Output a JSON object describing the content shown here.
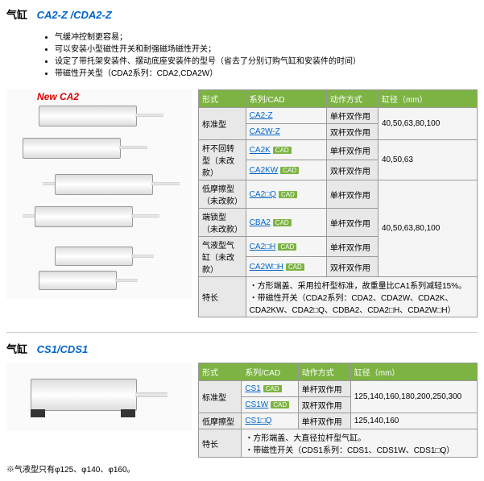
{
  "ca2": {
    "section_label": "气缸",
    "model": "CA2-Z /CDA2-Z",
    "features": [
      "气缓冲控制更容易；",
      "可以安装小型磁性开关和耐强磁场磁性开关；",
      "设定了带托架安装件、摆动底座安装件的型号（省去了分别订购气缸和安装件的时间）",
      "带磁性开关型（CDA2系列：CDA2,CDA2W）"
    ],
    "new_badge": "New CA2",
    "headers": [
      "形式",
      "系列/CAD",
      "动作方式",
      "缸径（mm）"
    ],
    "rows": [
      {
        "form": "标准型",
        "series": [
          {
            "t": "CA2-Z",
            "cad": 0
          },
          {
            "t": "CA2W-Z",
            "cad": 0
          }
        ],
        "action": [
          "单杆双作用",
          "双杆双作用"
        ],
        "bore": "40,50,63,80,100",
        "rowspan": 2
      },
      {
        "form": "杆不回转型（未改款）",
        "series": [
          {
            "t": "CA2K",
            "cad": 1
          },
          {
            "t": "CA2KW",
            "cad": 1
          }
        ],
        "action": [
          "单杆双作用",
          "双杆双作用"
        ],
        "bore": "40,50,63",
        "rowspan": 2
      },
      {
        "form": "低摩擦型（未改款）",
        "series": [
          {
            "t": "CA2□Q",
            "cad": 1
          }
        ],
        "action": [
          "单杆双作用"
        ],
        "bore": "",
        "rowspan": 1,
        "bore_rowspan": 4,
        "bore_val": "40,50,63,80,100"
      },
      {
        "form": "端锁型（未改款）",
        "series": [
          {
            "t": "CBA2",
            "cad": 1
          }
        ],
        "action": [
          "单杆双作用"
        ],
        "rowspan": 1
      },
      {
        "form": "气液型气缸（未改款）",
        "series": [
          {
            "t": "CA2□H",
            "cad": 1
          },
          {
            "t": "CA2W□H",
            "cad": 1
          }
        ],
        "action": [
          "单杆双作用",
          "双杆双作用"
        ],
        "rowspan": 2
      }
    ],
    "spec_label": "特长",
    "spec_text": "・方形端盖、采用拉杆型标准，故重量比CA1系列减轻15%。\n・带磁性开关（CDA2系列：CDA2、CDA2W、CDA2K、CDA2KW、CDA2□Q、CDBA2、CDA2□H、CDA2W□H）"
  },
  "cs1": {
    "section_label": "气缸",
    "model": "CS1/CDS1",
    "headers": [
      "形式",
      "系列/CAD",
      "动作方式",
      "缸径（mm）"
    ],
    "rows": [
      {
        "form": "标准型",
        "series": [
          {
            "t": "CS1",
            "cad": 1
          },
          {
            "t": "CS1W",
            "cad": 1
          }
        ],
        "action": [
          "单杆双作用",
          "双杆双作用"
        ],
        "bore": "125,140,160,180,200,250,300",
        "rowspan": 2
      },
      {
        "form": "低摩擦型",
        "series": [
          {
            "t": "CS1□Q",
            "cad": 0
          }
        ],
        "action": [
          "单杆双作用"
        ],
        "bore": "125,140,160",
        "rowspan": 1
      }
    ],
    "spec_label": "特长",
    "spec_text": "・方形端盖、大直径拉杆型气缸。\n・带磁性开关（CDS1系列：CDS1、CDS1W、CDS1□Q）"
  },
  "footnote": "※气液型只有φ125、φ140、φ160。"
}
